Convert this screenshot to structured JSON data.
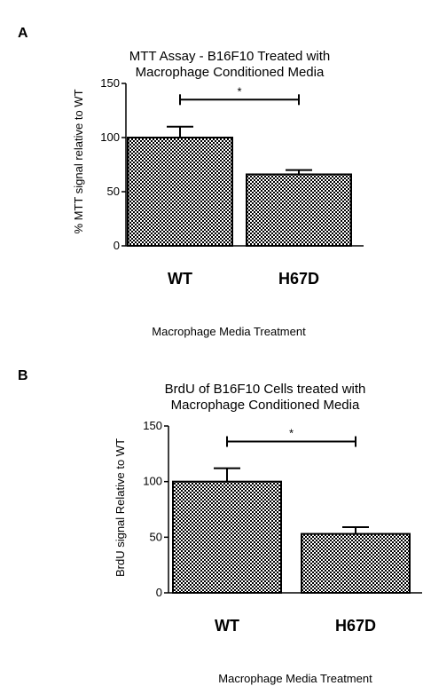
{
  "panels": [
    {
      "letter": "A",
      "title_line1": "MTT Assay - B16F10 Treated with",
      "title_line2": "Macrophage Conditioned Media",
      "ylabel": "% MTT signal relative to WT",
      "xlabel": "Macrophage Media Treatment",
      "significance": "*"
    },
    {
      "letter": "B",
      "title_line1": "BrdU of B16F10 Cells treated with",
      "title_line2": "Macrophage Conditioned Media",
      "ylabel": "BrdU signal Relative to WT",
      "xlabel": "Macrophage Media Treatment",
      "significance": "*"
    }
  ],
  "chart_data": [
    {
      "type": "bar",
      "title": "MTT Assay - B16F10 Treated with Macrophage Conditioned Media",
      "xlabel": "Macrophage Media Treatment",
      "ylabel": "% MTT signal relative to WT",
      "categories": [
        "WT",
        "H67D"
      ],
      "values": [
        100,
        66
      ],
      "error": [
        10,
        4
      ],
      "ylim": [
        0,
        150
      ],
      "yticks": [
        0,
        50,
        100,
        150
      ],
      "significance": {
        "between": [
          "WT",
          "H67D"
        ],
        "label": "*",
        "y": 135
      },
      "bar_pattern": "checkerboard",
      "grid": false
    },
    {
      "type": "bar",
      "title": "BrdU of B16F10 Cells treated with Macrophage Conditioned Media",
      "xlabel": "Macrophage Media Treatment",
      "ylabel": "BrdU signal Relative to WT",
      "categories": [
        "WT",
        "H67D"
      ],
      "values": [
        100,
        53
      ],
      "error": [
        12,
        6
      ],
      "ylim": [
        0,
        150
      ],
      "yticks": [
        0,
        50,
        100,
        150
      ],
      "significance": {
        "between": [
          "WT",
          "H67D"
        ],
        "label": "*",
        "y": 136
      },
      "bar_pattern": "checkerboard",
      "grid": false
    }
  ]
}
